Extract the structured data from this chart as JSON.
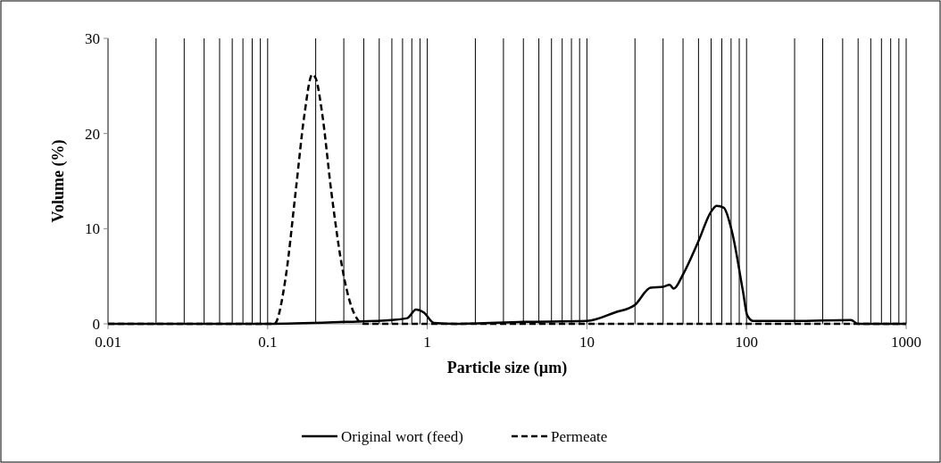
{
  "chart_data": {
    "type": "line",
    "xlabel": "Particle size (µm)",
    "ylabel": "Volume (%)",
    "log": "x",
    "xlim": [
      0.01,
      1000
    ],
    "ylim": [
      0,
      30
    ],
    "xticks": [
      0.01,
      {
        "value": 0.02,
        "label": null
      },
      {
        "value": 0.03,
        "label": null
      },
      {
        "value": 0.04,
        "label": null
      },
      {
        "value": 0.05,
        "label": null
      },
      {
        "value": 0.06,
        "label": null
      },
      {
        "value": 0.07,
        "label": null
      },
      {
        "value": 0.08,
        "label": null
      },
      {
        "value": 0.09,
        "label": null
      },
      0.1,
      {
        "value": 0.2,
        "label": null
      },
      {
        "value": 0.3,
        "label": null
      },
      {
        "value": 0.4,
        "label": null
      },
      {
        "value": 0.5,
        "label": null
      },
      {
        "value": 0.6,
        "label": null
      },
      {
        "value": 0.7,
        "label": null
      },
      {
        "value": 0.8,
        "label": null
      },
      {
        "value": 0.9,
        "label": null
      },
      1,
      {
        "value": 2,
        "label": null
      },
      {
        "value": 3,
        "label": null
      },
      {
        "value": 4,
        "label": null
      },
      {
        "value": 5,
        "label": null
      },
      {
        "value": 6,
        "label": null
      },
      {
        "value": 7,
        "label": null
      },
      {
        "value": 8,
        "label": null
      },
      {
        "value": 9,
        "label": null
      },
      10,
      {
        "value": 20,
        "label": null
      },
      {
        "value": 30,
        "label": null
      },
      {
        "value": 40,
        "label": null
      },
      {
        "value": 50,
        "label": null
      },
      {
        "value": 60,
        "label": null
      },
      {
        "value": 70,
        "label": null
      },
      {
        "value": 80,
        "label": null
      },
      {
        "value": 90,
        "label": null
      },
      100,
      {
        "value": 200,
        "label": null
      },
      {
        "value": 300,
        "label": null
      },
      {
        "value": 400,
        "label": null
      },
      {
        "value": 500,
        "label": null
      },
      {
        "value": 600,
        "label": null
      },
      {
        "value": 700,
        "label": null
      },
      {
        "value": 800,
        "label": null
      },
      {
        "value": 900,
        "label": null
      },
      1000
    ],
    "yticks": [
      0,
      10,
      20,
      30
    ],
    "grid": "x",
    "legend": "bottom",
    "series": [
      {
        "name": "Original wort (feed)",
        "color": "#000000",
        "line_style": "solid",
        "x": [
          0.01,
          0.1,
          0.3,
          0.6,
          0.75,
          0.85,
          0.95,
          1.1,
          1.5,
          4,
          10,
          15,
          20,
          25,
          30,
          33,
          35,
          40,
          50,
          60,
          65,
          72,
          81,
          95,
          101,
          110,
          200,
          450,
          500,
          1000
        ],
        "values": [
          0,
          0,
          0.2,
          0.4,
          0.6,
          1.5,
          1.2,
          0.1,
          0,
          0.2,
          0.3,
          1.2,
          2,
          3.8,
          3.9,
          4.1,
          3.7,
          5.2,
          8.7,
          11.8,
          12.4,
          12.2,
          9.7,
          3.4,
          0.9,
          0.3,
          0.3,
          0.4,
          0,
          0
        ]
      },
      {
        "name": "Permeate",
        "color": "#000000",
        "line_style": "dashed",
        "x": [
          0.01,
          0.11,
          0.13,
          0.15,
          0.17,
          0.19,
          0.2,
          0.22,
          0.25,
          0.3,
          0.35,
          0.4,
          1000
        ],
        "values": [
          0,
          0,
          5,
          14,
          22,
          26.2,
          25.8,
          22,
          14,
          5,
          1,
          0,
          0
        ]
      }
    ]
  }
}
